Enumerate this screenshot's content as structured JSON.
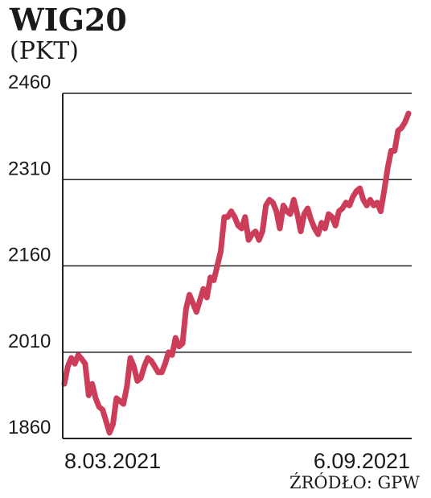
{
  "title": "WIG20",
  "subtitle": "(PKT)",
  "source": "ŹRÓDŁO: GPW",
  "colors": {
    "line": "#cc3d5a",
    "grid": "#222222",
    "text": "#1a1a1a"
  },
  "chart_data": {
    "type": "line",
    "title": "WIG20",
    "ylabel": "(PKT)",
    "xlabel": "",
    "ylim": [
      1860,
      2460
    ],
    "yticks": [
      1860,
      2010,
      2160,
      2310,
      2460
    ],
    "xtick_labels": [
      "8.03.2021",
      "6.09.2021"
    ],
    "grid": true,
    "series": [
      {
        "values": [
          1955,
          1985,
          2000,
          1990,
          2005,
          1998,
          1990,
          1935,
          1955,
          1930,
          1915,
          1910,
          1890,
          1870,
          1885,
          1930,
          1925,
          1920,
          1950,
          2000,
          1985,
          1960,
          1965,
          1985,
          2000,
          1995,
          1985,
          1975,
          1975,
          1990,
          2010,
          2005,
          2035,
          2020,
          2025,
          2085,
          2110,
          2095,
          2080,
          2100,
          2120,
          2105,
          2140,
          2135,
          2160,
          2185,
          2245,
          2245,
          2255,
          2245,
          2230,
          2225,
          2245,
          2205,
          2215,
          2220,
          2205,
          2220,
          2265,
          2275,
          2270,
          2255,
          2225,
          2265,
          2255,
          2250,
          2275,
          2250,
          2220,
          2250,
          2260,
          2240,
          2225,
          2215,
          2235,
          2225,
          2250,
          2245,
          2230,
          2255,
          2260,
          2270,
          2265,
          2280,
          2290,
          2295,
          2275,
          2265,
          2275,
          2265,
          2270,
          2255,
          2290,
          2330,
          2360,
          2360,
          2395,
          2400,
          2410,
          2425
        ]
      }
    ]
  }
}
